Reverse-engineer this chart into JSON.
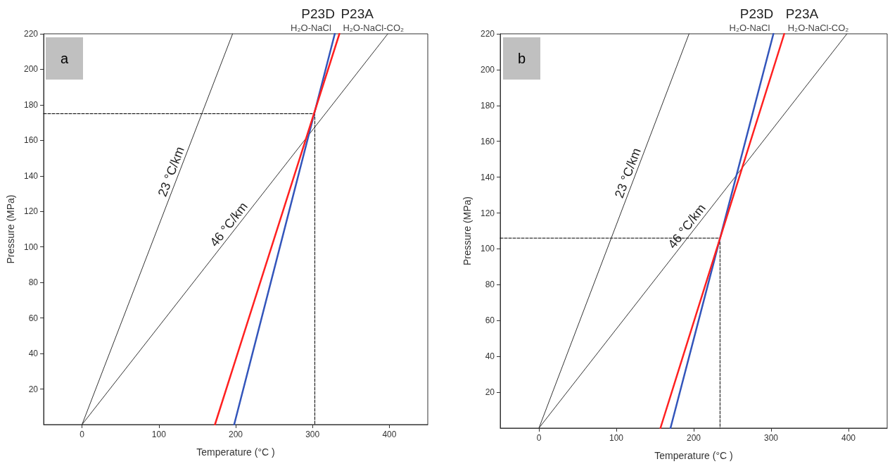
{
  "chart_data": [
    {
      "type": "line",
      "xlabel": "Temperature (°C )",
      "ylabel": "Pressure (MPa)",
      "xlim": [
        -50,
        450
      ],
      "ylim": [
        0,
        220
      ],
      "xticks": [
        0,
        100,
        200,
        300,
        400
      ],
      "yticks": [
        20,
        40,
        60,
        80,
        100,
        120,
        140,
        160,
        180,
        200,
        220
      ],
      "grid": false,
      "legend": false,
      "marker": "none",
      "annotations": [
        "a",
        {
          "text": "H₂O-NaCl",
          "x": 329,
          "y": 220
        },
        {
          "text": "H₂O-NaCl-CO₂",
          "x": 335,
          "y": 220
        }
      ],
      "series": [
        {
          "name": "23 °C/km",
          "color": "#333333",
          "x": [
            0,
            196
          ],
          "values": [
            0,
            220
          ]
        },
        {
          "name": "46 °C/km",
          "color": "#333333",
          "x": [
            0,
            398
          ],
          "values": [
            0,
            220
          ]
        },
        {
          "name": "P23D",
          "color": "#3355bb",
          "x": [
            198,
            329
          ],
          "values": [
            0,
            220
          ]
        },
        {
          "name": "P23A",
          "color": "#ff2020",
          "x": [
            173,
            335
          ],
          "values": [
            0,
            220
          ]
        },
        {
          "color": "#000000",
          "line_style": "dashed",
          "x": [
            -50,
            303,
            303
          ],
          "values": [
            175,
            175,
            0
          ]
        }
      ]
    },
    {
      "type": "line",
      "xlabel": "Temperature (°C )",
      "ylabel": "Pressure (MPa)",
      "xlim": [
        -50,
        450
      ],
      "ylim": [
        0,
        220
      ],
      "xticks": [
        0,
        100,
        200,
        300,
        400
      ],
      "yticks": [
        20,
        40,
        60,
        80,
        100,
        120,
        140,
        160,
        180,
        200,
        220
      ],
      "grid": false,
      "legend": false,
      "marker": "none",
      "annotations": [
        "b",
        {
          "text": "H₂O-NaCl",
          "x": 303,
          "y": 220
        },
        {
          "text": "H₂O-NaCl-CO₂",
          "x": 317,
          "y": 220
        }
      ],
      "series": [
        {
          "name": "23 °C/km",
          "color": "#333333",
          "x": [
            0,
            194
          ],
          "values": [
            0,
            220
          ]
        },
        {
          "name": "46 °C/km",
          "color": "#333333",
          "x": [
            0,
            398
          ],
          "values": [
            0,
            220
          ]
        },
        {
          "name": "P23D",
          "color": "#3355bb",
          "x": [
            170,
            303
          ],
          "values": [
            0,
            220
          ]
        },
        {
          "name": "P23A",
          "color": "#ff2020",
          "x": [
            157,
            317
          ],
          "values": [
            0,
            220
          ]
        },
        {
          "color": "#000000",
          "line_style": "dashed",
          "x": [
            -50,
            234,
            234
          ],
          "values": [
            106,
            106,
            0
          ]
        }
      ]
    }
  ]
}
